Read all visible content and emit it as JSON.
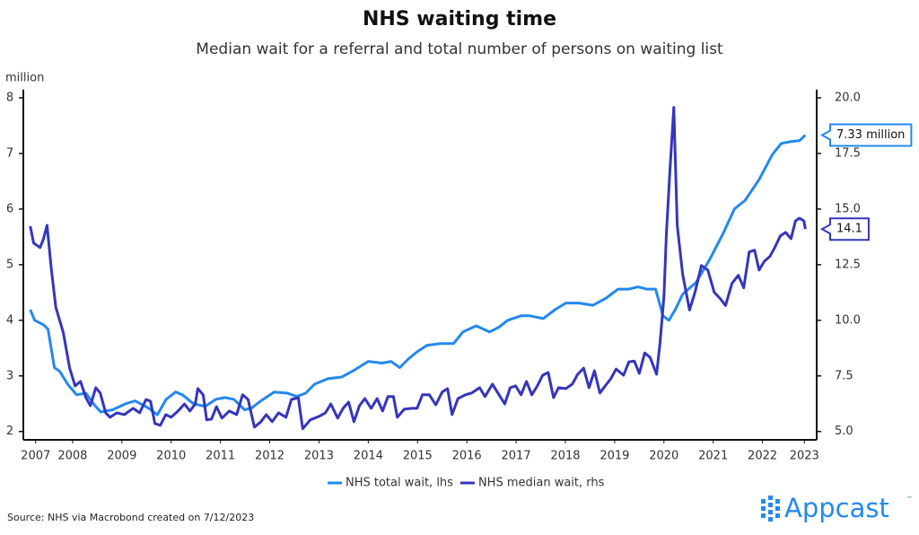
{
  "chart_data": {
    "type": "line",
    "title": "NHS waiting time",
    "subtitle": "Median wait for a referral and total number of persons on waiting list",
    "ylabel": "million",
    "source": "Source: NHS via Macrobond created on 7/12/2023",
    "logo": "Appcast",
    "logo_mark": "™",
    "annotations": [
      "7.33 million",
      "14.1"
    ],
    "xlim": [
      2007.5,
      2023.6
    ],
    "xticks": [
      {
        "value": 2007.75,
        "label": "2007"
      },
      {
        "value": 2008.5,
        "label": "2008"
      },
      {
        "value": 2009.5,
        "label": "2009"
      },
      {
        "value": 2010.5,
        "label": "2010"
      },
      {
        "value": 2011.5,
        "label": "2011"
      },
      {
        "value": 2012.5,
        "label": "2012"
      },
      {
        "value": 2013.5,
        "label": "2013"
      },
      {
        "value": 2014.5,
        "label": "2014"
      },
      {
        "value": 2015.5,
        "label": "2015"
      },
      {
        "value": 2016.5,
        "label": "2016"
      },
      {
        "value": 2017.5,
        "label": "2017"
      },
      {
        "value": 2018.5,
        "label": "2018"
      },
      {
        "value": 2019.5,
        "label": "2019"
      },
      {
        "value": 2020.5,
        "label": "2020"
      },
      {
        "value": 2021.5,
        "label": "2021"
      },
      {
        "value": 2022.5,
        "label": "2022"
      },
      {
        "value": 2023.35,
        "label": "2023"
      }
    ],
    "ylim": [
      1.85,
      8.15
    ],
    "yticks": [
      2,
      3,
      4,
      5,
      6,
      7,
      8
    ],
    "y2lim": [
      4.625,
      20.375
    ],
    "y2ticks": [
      {
        "value": 5,
        "label": "5.0"
      },
      {
        "value": 7.5,
        "label": "7.5"
      },
      {
        "value": 10,
        "label": "10.0"
      },
      {
        "value": 12.5,
        "label": "12.5"
      },
      {
        "value": 15,
        "label": "15.0"
      },
      {
        "value": 17.5,
        "label": "17.5"
      },
      {
        "value": 20,
        "label": "20.0"
      }
    ],
    "series": [
      {
        "name": "NHS total wait, lhs",
        "color": "#2389ee",
        "axis": "y",
        "x": [
          2007.64,
          2007.73,
          2007.91,
          2008.0,
          2008.13,
          2008.24,
          2008.4,
          2008.58,
          2008.77,
          2008.95,
          2009.07,
          2009.31,
          2009.58,
          2009.77,
          2010.04,
          2010.22,
          2010.4,
          2010.59,
          2010.73,
          2010.95,
          2011.19,
          2011.41,
          2011.59,
          2011.77,
          2011.99,
          2012.13,
          2012.32,
          2012.59,
          2012.86,
          2013.05,
          2013.23,
          2013.41,
          2013.68,
          2013.96,
          2014.23,
          2014.5,
          2014.78,
          2014.96,
          2015.14,
          2015.32,
          2015.5,
          2015.69,
          2015.96,
          2016.23,
          2016.42,
          2016.69,
          2016.96,
          2017.14,
          2017.33,
          2017.6,
          2017.78,
          2018.05,
          2018.29,
          2018.51,
          2018.78,
          2019.06,
          2019.33,
          2019.57,
          2019.79,
          2019.97,
          2020.15,
          2020.33,
          2020.48,
          2020.6,
          2020.73,
          2020.88,
          2021.15,
          2021.42,
          2021.7,
          2021.93,
          2022.15,
          2022.43,
          2022.7,
          2022.88,
          2023.06,
          2023.25,
          2023.37
        ],
        "values": [
          4.19,
          4.0,
          3.92,
          3.84,
          3.15,
          3.08,
          2.85,
          2.66,
          2.69,
          2.47,
          2.35,
          2.39,
          2.5,
          2.55,
          2.42,
          2.3,
          2.58,
          2.71,
          2.66,
          2.5,
          2.45,
          2.58,
          2.61,
          2.58,
          2.39,
          2.42,
          2.55,
          2.71,
          2.69,
          2.63,
          2.69,
          2.85,
          2.95,
          2.98,
          3.11,
          3.26,
          3.23,
          3.26,
          3.15,
          3.31,
          3.44,
          3.55,
          3.58,
          3.58,
          3.79,
          3.9,
          3.79,
          3.87,
          4.0,
          4.08,
          4.08,
          4.03,
          4.19,
          4.31,
          4.31,
          4.27,
          4.4,
          4.56,
          4.56,
          4.6,
          4.56,
          4.56,
          4.08,
          4.0,
          4.19,
          4.47,
          4.68,
          5.08,
          5.56,
          6.0,
          6.16,
          6.53,
          6.98,
          7.18,
          7.21,
          7.23,
          7.33
        ]
      },
      {
        "name": "NHS median wait, rhs",
        "color": "#3535bd",
        "axis": "y2",
        "x": [
          2007.64,
          2007.71,
          2007.84,
          2007.91,
          2007.98,
          2008.07,
          2008.16,
          2008.31,
          2008.44,
          2008.55,
          2008.66,
          2008.77,
          2008.86,
          2008.97,
          2009.06,
          2009.17,
          2009.26,
          2009.4,
          2009.55,
          2009.73,
          2009.86,
          2009.99,
          2010.08,
          2010.17,
          2010.28,
          2010.39,
          2010.5,
          2010.64,
          2010.77,
          2010.88,
          2010.99,
          2011.04,
          2011.15,
          2011.22,
          2011.32,
          2011.42,
          2011.53,
          2011.68,
          2011.83,
          2011.95,
          2012.06,
          2012.19,
          2012.32,
          2012.43,
          2012.55,
          2012.68,
          2012.83,
          2012.94,
          2013.08,
          2013.17,
          2013.32,
          2013.5,
          2013.63,
          2013.74,
          2013.88,
          2013.99,
          2014.1,
          2014.21,
          2014.32,
          2014.43,
          2014.56,
          2014.68,
          2014.79,
          2014.9,
          2015.01,
          2015.09,
          2015.23,
          2015.38,
          2015.49,
          2015.6,
          2015.74,
          2015.87,
          2016.0,
          2016.11,
          2016.2,
          2016.32,
          2016.47,
          2016.6,
          2016.76,
          2016.87,
          2017.02,
          2017.13,
          2017.27,
          2017.38,
          2017.49,
          2017.6,
          2017.71,
          2017.82,
          2017.93,
          2018.04,
          2018.15,
          2018.26,
          2018.36,
          2018.51,
          2018.64,
          2018.75,
          2018.87,
          2018.98,
          2019.09,
          2019.2,
          2019.31,
          2019.42,
          2019.53,
          2019.68,
          2019.79,
          2019.9,
          2020.0,
          2020.11,
          2020.22,
          2020.35,
          2020.42,
          2020.5,
          2020.55,
          2020.62,
          2020.7,
          2020.77,
          2020.88,
          2021.02,
          2021.13,
          2021.26,
          2021.39,
          2021.52,
          2021.64,
          2021.75,
          2021.88,
          2022.01,
          2022.12,
          2022.23,
          2022.34,
          2022.43,
          2022.54,
          2022.65,
          2022.75,
          2022.86,
          2022.97,
          2023.08,
          2023.17,
          2023.25,
          2023.34,
          2023.37
        ],
        "values": [
          14.23,
          13.47,
          13.27,
          13.67,
          14.27,
          12.26,
          10.58,
          9.45,
          7.85,
          7.05,
          7.25,
          6.52,
          6.16,
          6.97,
          6.73,
          5.84,
          5.64,
          5.84,
          5.76,
          6.04,
          5.84,
          6.44,
          6.36,
          5.36,
          5.28,
          5.76,
          5.64,
          5.92,
          6.24,
          5.92,
          6.24,
          6.93,
          6.65,
          5.52,
          5.56,
          6.12,
          5.6,
          5.92,
          5.76,
          6.65,
          6.44,
          5.2,
          5.44,
          5.76,
          5.44,
          5.84,
          5.64,
          6.44,
          6.52,
          5.12,
          5.52,
          5.68,
          5.84,
          6.24,
          5.6,
          6.04,
          6.32,
          5.44,
          6.16,
          6.48,
          6.04,
          6.48,
          5.92,
          6.57,
          6.57,
          5.64,
          6.0,
          6.04,
          6.04,
          6.65,
          6.65,
          6.2,
          6.77,
          6.93,
          5.76,
          6.48,
          6.65,
          6.73,
          6.97,
          6.57,
          7.13,
          6.73,
          6.24,
          6.97,
          7.05,
          6.65,
          7.25,
          6.65,
          7.05,
          7.53,
          7.65,
          6.52,
          6.97,
          6.93,
          7.13,
          7.57,
          7.85,
          6.97,
          7.73,
          6.73,
          7.05,
          7.37,
          7.81,
          7.53,
          8.13,
          8.17,
          7.61,
          8.53,
          8.33,
          7.57,
          8.97,
          11.06,
          13.87,
          16.68,
          19.57,
          14.27,
          12.06,
          10.46,
          11.26,
          12.46,
          12.26,
          11.26,
          10.98,
          10.66,
          11.66,
          12.02,
          11.46,
          13.07,
          13.15,
          12.26,
          12.66,
          12.87,
          13.27,
          13.79,
          13.95,
          13.67,
          14.47,
          14.59,
          14.47,
          14.1
        ]
      }
    ]
  }
}
